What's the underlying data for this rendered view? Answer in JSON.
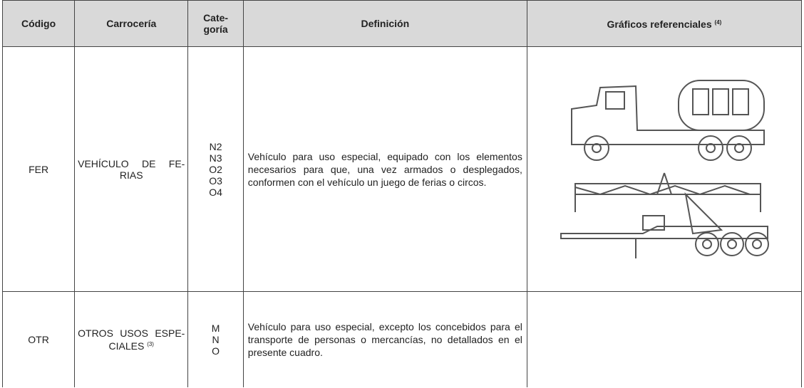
{
  "header": {
    "codigo": "Código",
    "carroceria": "Carrocería",
    "categoria": [
      "Cate-",
      "goría"
    ],
    "definicion": "Definición",
    "graficos": "Gráficos referenciales",
    "graficos_note": "(4)"
  },
  "rows": [
    {
      "codigo": "FER",
      "carroceria": [
        "VEHÍCULO DE FE-",
        "RIAS"
      ],
      "categoria": [
        "N2",
        "N3",
        "O2",
        "O3",
        "O4"
      ],
      "definicion": "Vehículo para uso especial,  equipado con los elementos necesarios para que, una vez armados o desplegados, conformen con el vehículo un juego de ferias o circos."
    },
    {
      "codigo": "OTR",
      "carroceria": [
        "OTROS USOS ESPE-",
        "CIALES"
      ],
      "carroceria_note": "(3)",
      "categoria": [
        "M",
        "N",
        "O"
      ],
      "definicion": "Vehículo para uso especial,  excepto los concebidos para el transporte de personas o mercancías, no detallados en el presente cuadro."
    }
  ]
}
